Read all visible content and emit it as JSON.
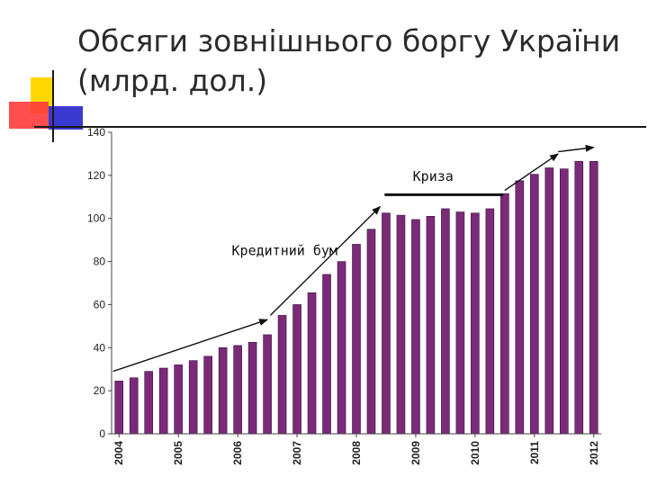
{
  "slide": {
    "title_line1": "Обсяги зовнішнього боргу України",
    "title_line2": "(млрд. дол.)"
  },
  "colors": {
    "bar_fill": "#7b2a78",
    "bar_stroke": "#3a1040",
    "deco_yellow": "#ffd700",
    "deco_red": "#ff3b3b",
    "deco_blue": "#3a3ad0",
    "deco_line": "#1a1a1a"
  },
  "chart_data": {
    "type": "bar",
    "title": "",
    "xlabel": "",
    "ylabel": "",
    "ylim": [
      0,
      140
    ],
    "yticks": [
      "0",
      "20",
      "40",
      "60",
      "80",
      "100",
      "120",
      "140"
    ],
    "year_labels": [
      "2004",
      "2005",
      "2006",
      "2007",
      "2008",
      "2009",
      "2010",
      "2011",
      "2012"
    ],
    "bars_per_year": 4,
    "grid": false,
    "values": [
      24.5,
      26,
      29,
      30.5,
      32,
      34,
      36,
      40,
      41,
      42.5,
      46,
      55,
      60,
      65.5,
      74,
      80,
      88,
      95,
      102.5,
      101.5,
      99.5,
      101,
      104.5,
      103,
      102.5,
      104.5,
      111.5,
      117.5,
      120.5,
      123.5,
      123,
      126.5,
      126.5
    ],
    "annotations": [
      {
        "text": "Кредитний бум",
        "x_index": 7.6,
        "y": 83
      },
      {
        "text": "Криза",
        "x_index": 19.8,
        "y": 117.5
      }
    ],
    "arrows": [
      {
        "from": [
          -0.4,
          29
        ],
        "to": [
          10.0,
          53
        ],
        "style": "arrow"
      },
      {
        "from": [
          10.2,
          55
        ],
        "to": [
          17.6,
          105.5
        ],
        "style": "arrow"
      },
      {
        "from": [
          17.9,
          111
        ],
        "to": [
          25.9,
          111
        ],
        "style": "thick"
      },
      {
        "from": [
          26.0,
          113
        ],
        "to": [
          29.6,
          130
        ],
        "style": "arrow"
      },
      {
        "from": [
          29.6,
          131
        ],
        "to": [
          32.0,
          133
        ],
        "style": "arrow"
      }
    ]
  }
}
